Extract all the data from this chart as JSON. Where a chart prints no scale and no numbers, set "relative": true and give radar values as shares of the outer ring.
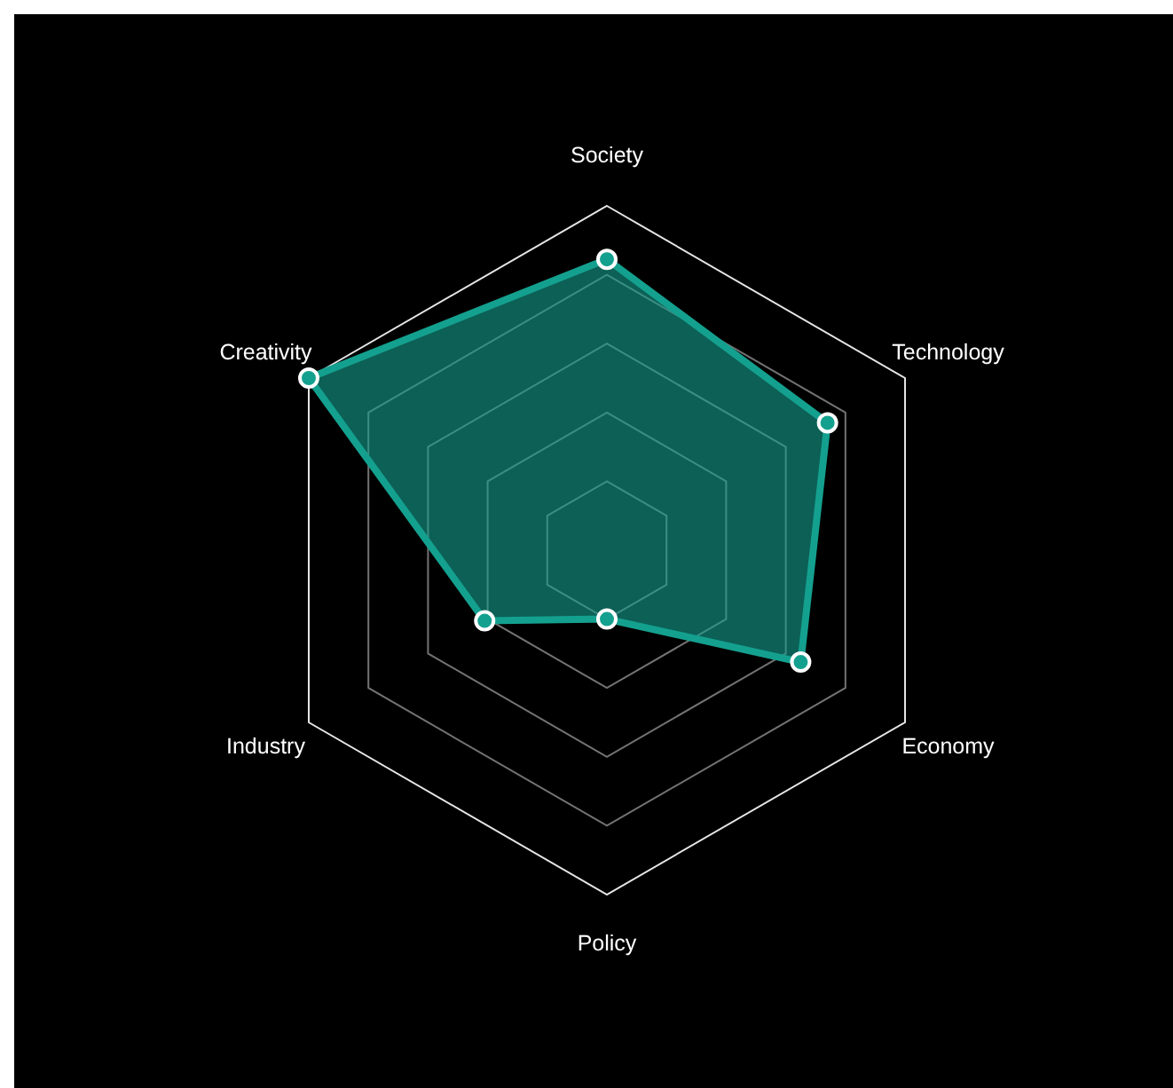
{
  "chart_data": {
    "type": "radar",
    "relative": true,
    "categories": [
      "Society",
      "Technology",
      "Economy",
      "Policy",
      "Industry",
      "Creativity"
    ],
    "series": [
      {
        "color": "#14a08f",
        "values": [
          0.845,
          0.74,
          0.65,
          0.2,
          0.41,
          1.0
        ]
      }
    ],
    "grid": true,
    "marker": "circle"
  }
}
